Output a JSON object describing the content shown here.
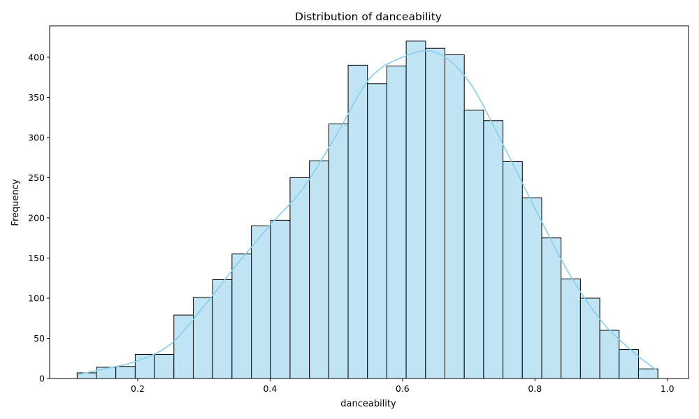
{
  "chart_data": {
    "type": "bar",
    "title": "Distribution of danceability",
    "xlabel": "danceability",
    "ylabel": "Frequency",
    "xlim": [
      0.067,
      1.032
    ],
    "ylim": [
      0,
      439
    ],
    "xticks": [
      0.2,
      0.4,
      0.6,
      0.8,
      1.0
    ],
    "xtick_labels": [
      "0.2",
      "0.4",
      "0.6",
      "0.8",
      "1.0"
    ],
    "yticks": [
      0,
      50,
      100,
      150,
      200,
      250,
      300,
      350,
      400
    ],
    "ytick_labels": [
      "0",
      "50",
      "100",
      "150",
      "200",
      "250",
      "300",
      "350",
      "400"
    ],
    "grid": false,
    "bar_fill": "#c0e4f3",
    "bar_edge": "#000000",
    "kde_color": "#87ceeb",
    "bins": {
      "start": 0.1085,
      "width": 0.02924,
      "values": [
        7,
        14,
        15,
        30,
        30,
        79,
        101,
        123,
        155,
        190,
        197,
        250,
        271,
        317,
        390,
        367,
        389,
        420,
        411,
        403,
        334,
        321,
        270,
        225,
        175,
        124,
        100,
        60,
        36,
        12
      ]
    },
    "kde": {
      "x": [
        0.11,
        0.15,
        0.2,
        0.25,
        0.3,
        0.35,
        0.4,
        0.45,
        0.5,
        0.55,
        0.6,
        0.65,
        0.7,
        0.75,
        0.8,
        0.85,
        0.9,
        0.95,
        0.985
      ],
      "y": [
        5,
        12,
        22,
        43,
        90,
        142,
        191,
        237,
        303,
        373,
        400,
        406,
        370,
        294,
        212,
        133,
        72,
        32,
        10
      ]
    }
  }
}
